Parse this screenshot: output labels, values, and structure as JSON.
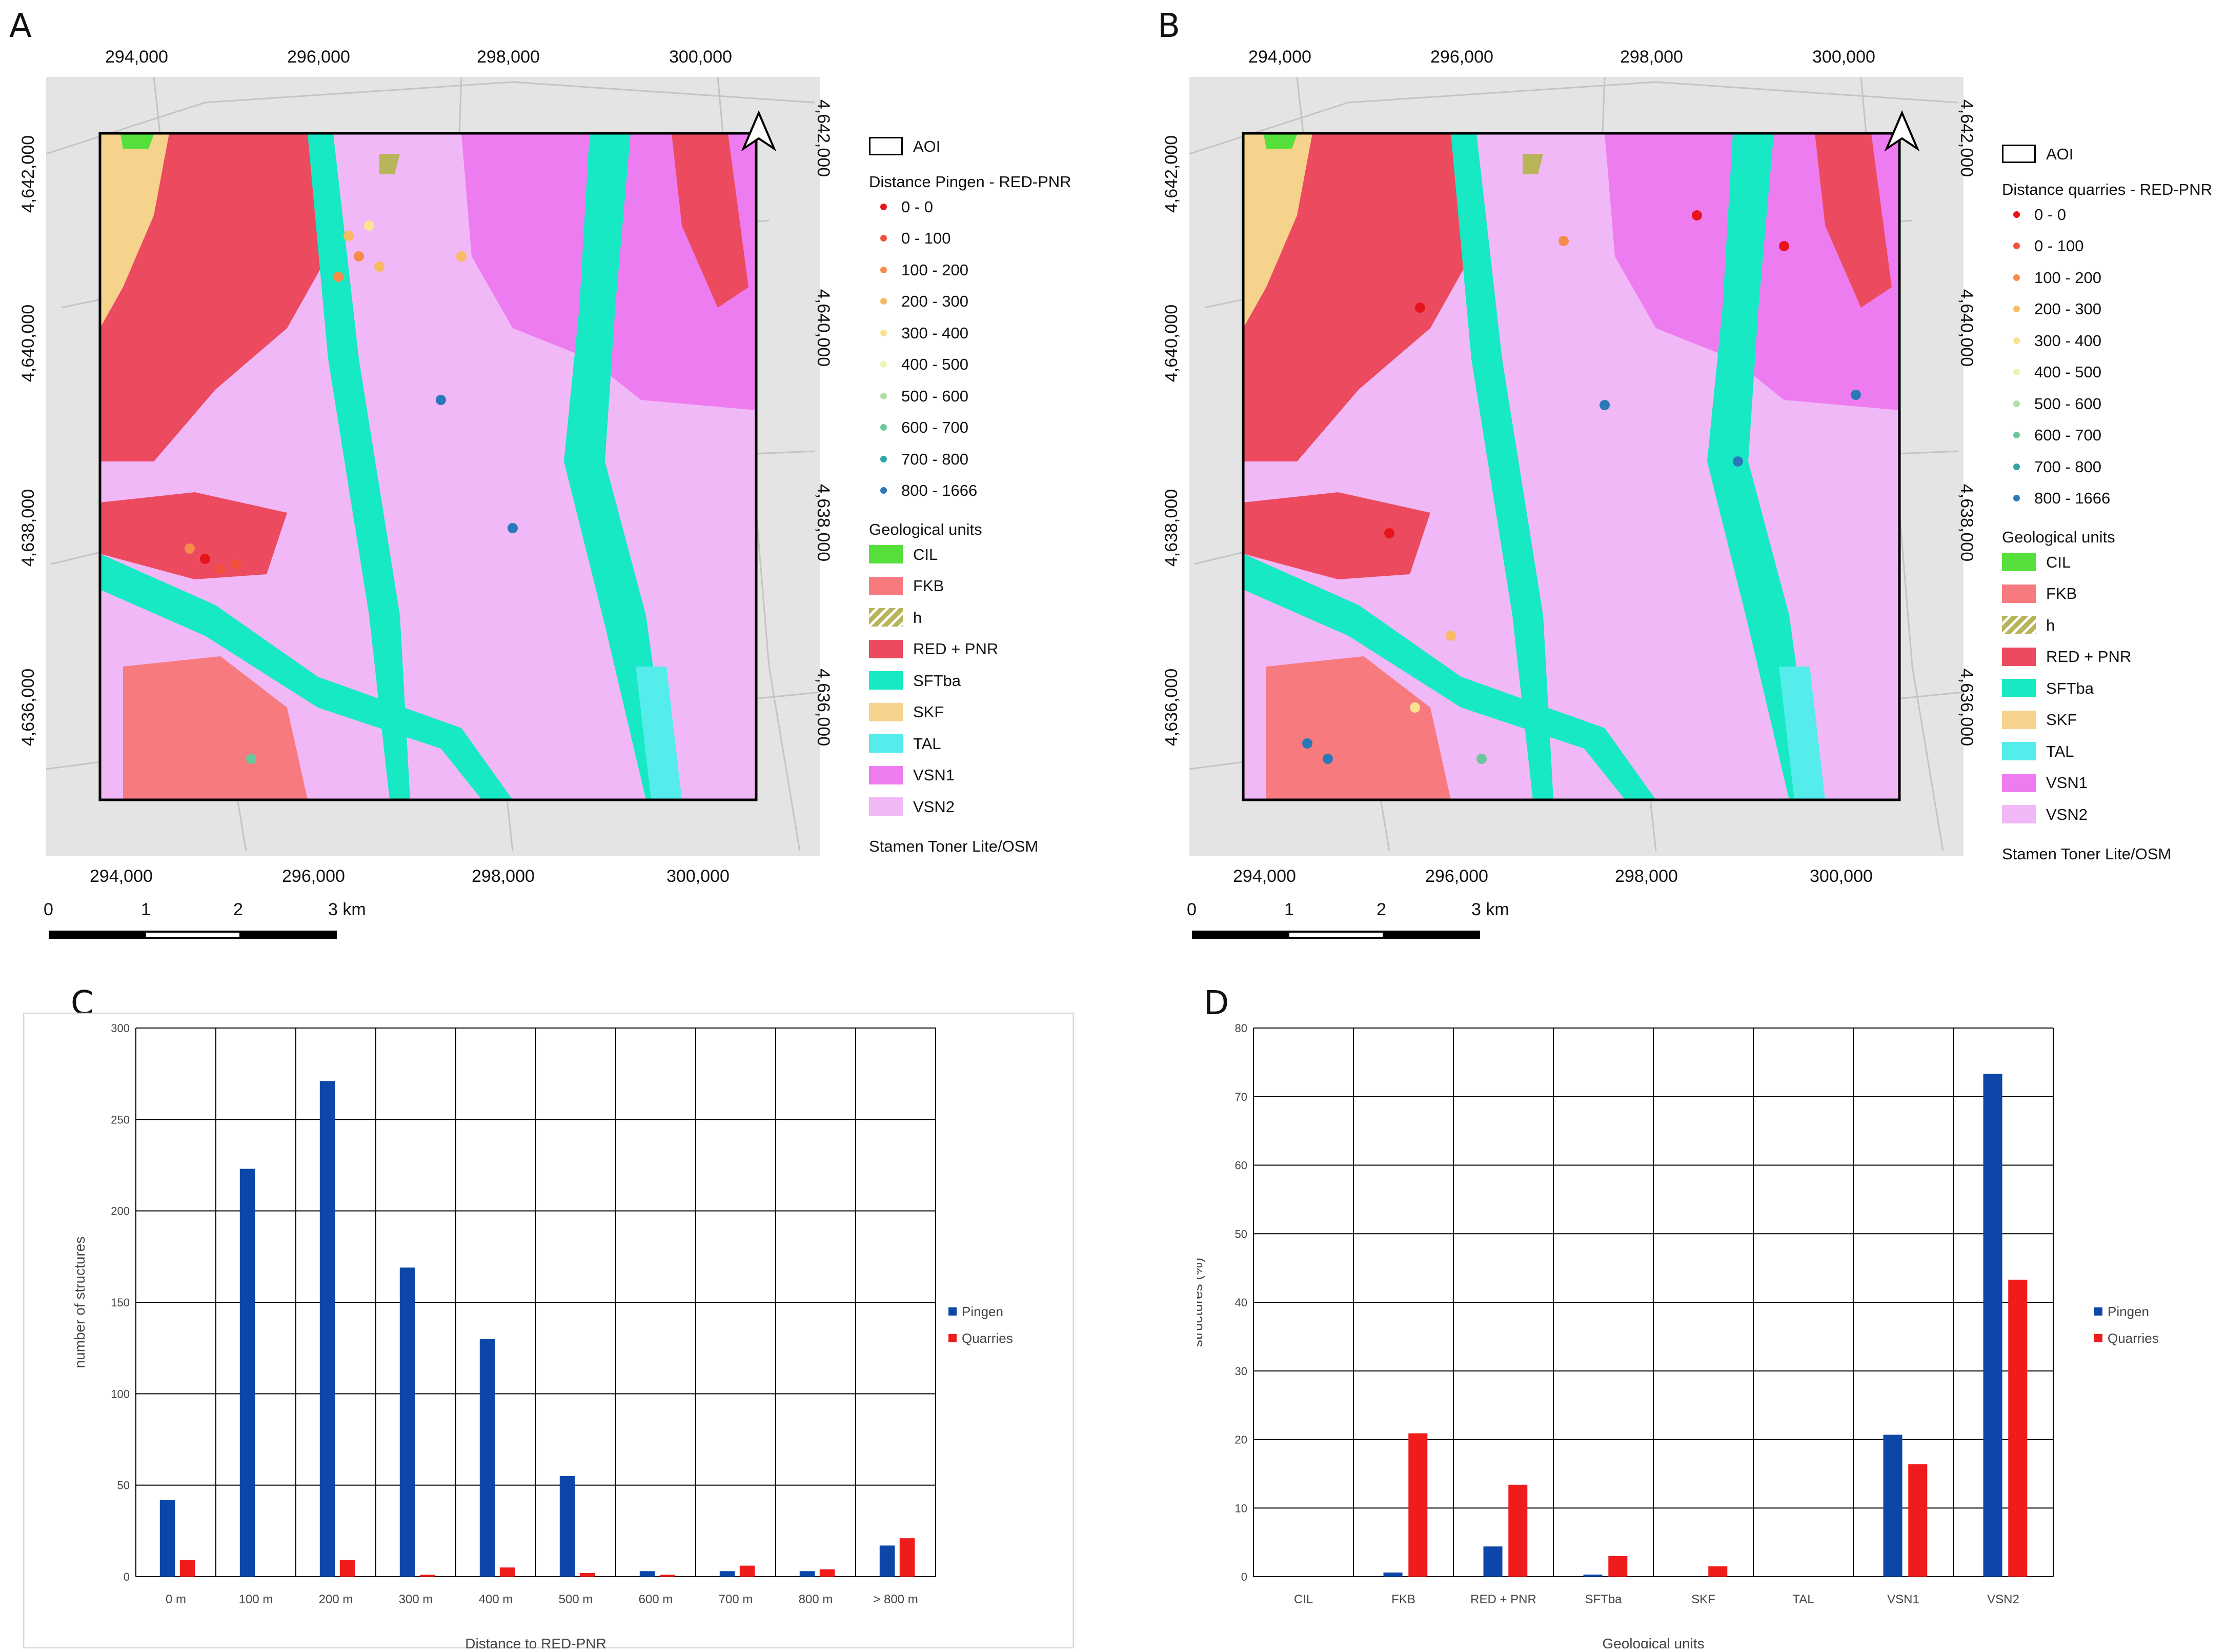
{
  "panel_labels": {
    "a": "A",
    "b": "B",
    "c": "C",
    "d": "D"
  },
  "colors": {
    "CIL": "#55e03c",
    "FKB": "#f77a7f",
    "h": "#b8b45a",
    "RED_PNR": "#ec4a5e",
    "SFTba": "#16e9c4",
    "SKF": "#f6d38d",
    "TAL": "#55ecec",
    "VSN1": "#ee7cf1",
    "VSN2": "#f0b8f6",
    "pingen": "#0c46a8",
    "quarries": "#f01c1c",
    "map_background": "#e4e4e4"
  },
  "maps": [
    {
      "id": "A",
      "top_axis": [
        "294,000",
        "296,000",
        "298,000",
        "300,000"
      ],
      "bottom_axis": [
        "294,000",
        "296,000",
        "298,000",
        "300,000"
      ],
      "left_axis": [
        "4,642,000",
        "4,640,000",
        "4,638,000",
        "4,636,000"
      ],
      "right_axis": [
        "4,642,000",
        "4,640,000",
        "4,638,000",
        "4,636,000"
      ],
      "legend": {
        "aoi": "AOI",
        "distance_title": "Distance Pingen - RED-PNR",
        "distance_classes": [
          {
            "label": "0 - 0",
            "color": "#e8141c"
          },
          {
            "label": "0 - 100",
            "color": "#f0503c"
          },
          {
            "label": "100 - 200",
            "color": "#f58c4a"
          },
          {
            "label": "200 - 300",
            "color": "#f8bb62"
          },
          {
            "label": "300 - 400",
            "color": "#fbe290"
          },
          {
            "label": "400 - 500",
            "color": "#eef2b2"
          },
          {
            "label": "500 - 600",
            "color": "#b0dfa6"
          },
          {
            "label": "600 - 700",
            "color": "#6cc79c"
          },
          {
            "label": "700 - 800",
            "color": "#2fa6a4"
          },
          {
            "label": "800 - 1666",
            "color": "#2a78b8"
          }
        ],
        "geo_title": "Geological units",
        "geo_units": [
          "CIL",
          "FKB",
          "h",
          "RED + PNR",
          "SFTba",
          "SKF",
          "TAL",
          "VSN1",
          "VSN2"
        ],
        "basemap": "Stamen Toner Lite/OSM"
      },
      "scalebar": [
        "0",
        "1",
        "2",
        "3 km"
      ]
    },
    {
      "id": "B",
      "top_axis": [
        "294,000",
        "296,000",
        "298,000",
        "300,000"
      ],
      "bottom_axis": [
        "294,000",
        "296,000",
        "298,000",
        "300,000"
      ],
      "left_axis": [
        "4,642,000",
        "4,640,000",
        "4,638,000",
        "4,636,000"
      ],
      "right_axis": [
        "4,642,000",
        "4,640,000",
        "4,638,000",
        "4,636,000"
      ],
      "legend": {
        "aoi": "AOI",
        "distance_title": "Distance quarries - RED-PNR",
        "distance_classes": [
          {
            "label": "0 - 0",
            "color": "#e8141c"
          },
          {
            "label": "0 - 100",
            "color": "#f0503c"
          },
          {
            "label": "100 - 200",
            "color": "#f58c4a"
          },
          {
            "label": "200 - 300",
            "color": "#f8bb62"
          },
          {
            "label": "300 - 400",
            "color": "#fbe290"
          },
          {
            "label": "400 - 500",
            "color": "#eef2b2"
          },
          {
            "label": "500 - 600",
            "color": "#b0dfa6"
          },
          {
            "label": "600 - 700",
            "color": "#6cc79c"
          },
          {
            "label": "700 - 800",
            "color": "#2fa6a4"
          },
          {
            "label": "800 - 1666",
            "color": "#2a78b8"
          }
        ],
        "geo_title": "Geological units",
        "geo_units": [
          "CIL",
          "FKB",
          "h",
          "RED + PNR",
          "SFTba",
          "SKF",
          "TAL",
          "VSN1",
          "VSN2"
        ],
        "basemap": "Stamen Toner Lite/OSM"
      },
      "scalebar": [
        "0",
        "1",
        "2",
        "3 km"
      ]
    }
  ],
  "chart_data": [
    {
      "id": "C",
      "type": "bar",
      "categories": [
        "0 m",
        "100 m",
        "200 m",
        "300 m",
        "400 m",
        "500 m",
        "600 m",
        "700 m",
        "800 m",
        "> 800 m"
      ],
      "series": [
        {
          "name": "Pingen",
          "values": [
            42,
            223,
            271,
            169,
            130,
            55,
            3,
            3,
            3,
            17
          ]
        },
        {
          "name": "Quarries",
          "values": [
            9,
            0,
            9,
            1,
            5,
            2,
            1,
            6,
            4,
            21
          ]
        }
      ],
      "xlabel": "Distance to RED-PNR",
      "ylabel": "number of structures",
      "ylim": [
        0,
        300
      ],
      "yticks": [
        0,
        50,
        100,
        150,
        200,
        250,
        300
      ],
      "legend": "right",
      "grid": true
    },
    {
      "id": "D",
      "type": "bar",
      "categories": [
        "CIL",
        "FKB",
        "RED + PNR",
        "SFTba",
        "SKF",
        "TAL",
        "VSN1",
        "VSN2"
      ],
      "series": [
        {
          "name": "Pingen",
          "values": [
            0,
            0.6,
            4.4,
            0.3,
            0,
            0,
            20.7,
            73.3
          ]
        },
        {
          "name": "Quarries",
          "values": [
            0,
            20.9,
            13.4,
            3,
            1.5,
            0,
            16.4,
            43.3
          ]
        }
      ],
      "xlabel": "Geological units",
      "ylabel": "structures (%)",
      "ylim": [
        0,
        80
      ],
      "yticks": [
        0,
        10,
        20,
        30,
        40,
        50,
        60,
        70,
        80
      ],
      "legend": "right",
      "grid": true
    }
  ]
}
